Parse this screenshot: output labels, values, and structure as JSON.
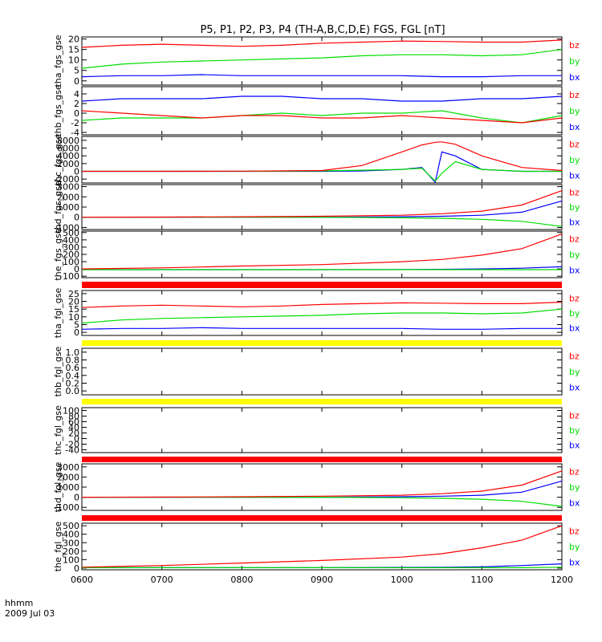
{
  "title": "P5, P1, P2, P3, P4 (TH-A,B,C,D,E) FGS, FGL [nT]",
  "footer": {
    "time_label": "hhmm",
    "date_label": "2009 Jul 03"
  },
  "colors": {
    "bx": "#0000ff",
    "by": "#00dd00",
    "bz": "#ff0000",
    "bar_red": "#ff0000",
    "bar_yellow": "#ffff00",
    "frame": "#000000"
  },
  "chart_data": [
    {
      "type": "line",
      "ylabel": "tha_fgs_gse",
      "ylim": [
        -2,
        21
      ],
      "yticks": [
        "0",
        "5",
        "10",
        "15",
        "20"
      ],
      "x": [
        "0600",
        "0630",
        "0700",
        "0730",
        "0800",
        "0830",
        "0900",
        "0930",
        "1000",
        "1030",
        "1100",
        "1130",
        "1200"
      ],
      "series": [
        {
          "name": "bz",
          "values": [
            16,
            17,
            17.5,
            17,
            16.5,
            17,
            18,
            18.5,
            19,
            18.8,
            18.5,
            18.5,
            19.5
          ]
        },
        {
          "name": "by",
          "values": [
            6,
            8,
            9,
            9.5,
            10,
            10.5,
            11,
            12,
            12.5,
            12.5,
            12,
            12.5,
            15
          ]
        },
        {
          "name": "bx",
          "values": [
            2,
            2.5,
            2.5,
            3,
            2.5,
            2.5,
            2.5,
            2.5,
            2.5,
            2,
            2,
            2.5,
            2.5
          ]
        }
      ]
    },
    {
      "type": "line",
      "ylabel": "thb_fgs_gse",
      "ylim": [
        -4.5,
        5.5
      ],
      "yticks": [
        "-4",
        "-2",
        "0",
        "2",
        "4"
      ],
      "x": [
        "0600",
        "0630",
        "0700",
        "0730",
        "0800",
        "0830",
        "0900",
        "0930",
        "1000",
        "1030",
        "1100",
        "1130",
        "1200"
      ],
      "series": [
        {
          "name": "bz",
          "values": [
            0.5,
            0,
            -0.5,
            -1,
            -0.5,
            -0.5,
            -1,
            -1,
            -0.5,
            -1,
            -1.5,
            -2,
            -1
          ]
        },
        {
          "name": "by",
          "values": [
            -1.5,
            -1,
            -1,
            -1,
            -0.5,
            0,
            -0.5,
            0,
            0,
            0.5,
            -1,
            -2,
            -0.5
          ]
        },
        {
          "name": "bx",
          "values": [
            2.5,
            3,
            3,
            3,
            3.5,
            3.5,
            3,
            3,
            2.5,
            2.5,
            3,
            3,
            3.5
          ]
        }
      ]
    },
    {
      "type": "line",
      "ylabel": "thc_fgs_gse",
      "ylim": [
        -3000,
        9000
      ],
      "yticks": [
        "-2000",
        "0",
        "2000",
        "4000",
        "6000",
        "8000"
      ],
      "x": [
        "0600",
        "0700",
        "0800",
        "0900",
        "0930",
        "1000",
        "1015",
        "1025",
        "1030",
        "1040",
        "1100",
        "1130",
        "1200"
      ],
      "series": [
        {
          "name": "bz",
          "values": [
            0,
            0,
            50,
            200,
            1500,
            5000,
            6800,
            7500,
            7600,
            7000,
            4000,
            1000,
            200
          ]
        },
        {
          "name": "by",
          "values": [
            0,
            0,
            0,
            100,
            300,
            500,
            800,
            -2500,
            -500,
            2500,
            500,
            0,
            0
          ]
        },
        {
          "name": "bx",
          "values": [
            0,
            0,
            0,
            0,
            100,
            500,
            1000,
            -2800,
            5000,
            4000,
            500,
            0,
            0
          ]
        }
      ]
    },
    {
      "type": "line",
      "ylabel": "thd_fgs_gse",
      "ylim": [
        -1200,
        3200
      ],
      "yticks": [
        "-1000",
        "0",
        "1000",
        "2000",
        "3000"
      ],
      "x": [
        "0600",
        "0700",
        "0800",
        "0900",
        "1000",
        "1030",
        "1100",
        "1130",
        "1200"
      ],
      "series": [
        {
          "name": "bz",
          "values": [
            0,
            20,
            50,
            100,
            200,
            350,
            600,
            1200,
            2600
          ]
        },
        {
          "name": "by",
          "values": [
            0,
            0,
            0,
            0,
            -50,
            -100,
            -200,
            -400,
            -900
          ]
        },
        {
          "name": "bx",
          "values": [
            0,
            0,
            0,
            0,
            50,
            100,
            200,
            500,
            1600
          ]
        }
      ]
    },
    {
      "type": "line",
      "ylabel": "the_fgs_gse",
      "ylim": [
        -120,
        520
      ],
      "yticks": [
        "-100",
        "0",
        "100",
        "200",
        "300",
        "400",
        "500"
      ],
      "x": [
        "0600",
        "0700",
        "0800",
        "0900",
        "1000",
        "1030",
        "1100",
        "1130",
        "1200"
      ],
      "series": [
        {
          "name": "bz",
          "values": [
            0,
            15,
            40,
            60,
            100,
            130,
            190,
            280,
            480
          ]
        },
        {
          "name": "by",
          "values": [
            -10,
            -10,
            -10,
            -10,
            -10,
            -10,
            -10,
            -10,
            -10
          ]
        },
        {
          "name": "bx",
          "values": [
            -10,
            -10,
            -10,
            -10,
            -8,
            -5,
            0,
            10,
            30
          ]
        }
      ]
    },
    {
      "type": "line",
      "ylabel": "tha_fgl_gse",
      "ylim": [
        -2,
        27
      ],
      "yticks": [
        "0",
        "5",
        "10",
        "15",
        "20",
        "25"
      ],
      "x": [
        "0600",
        "0630",
        "0700",
        "0730",
        "0800",
        "0830",
        "0900",
        "0930",
        "1000",
        "1030",
        "1100",
        "1130",
        "1200"
      ],
      "series": [
        {
          "name": "bz",
          "values": [
            16,
            17,
            17.5,
            17,
            16.5,
            17,
            18,
            18.5,
            19,
            18.8,
            18.5,
            18.5,
            19.5
          ]
        },
        {
          "name": "by",
          "values": [
            6,
            8,
            9,
            9.5,
            10,
            10.5,
            11,
            12,
            12.5,
            12.5,
            12,
            12.5,
            15
          ]
        },
        {
          "name": "bx",
          "values": [
            2,
            2.5,
            2.5,
            3,
            2.5,
            2.5,
            2.5,
            2.5,
            2.5,
            2,
            2,
            2.5,
            2.5
          ]
        }
      ]
    },
    {
      "type": "line",
      "ylabel": "thb_fgl_gse",
      "ylim": [
        -0.1,
        1.1
      ],
      "yticks": [
        "0.0",
        "0.2",
        "0.4",
        "0.6",
        "0.8",
        "1.0"
      ],
      "x": [],
      "series": []
    },
    {
      "type": "line",
      "ylabel": "thc_fgl_gse",
      "ylim": [
        -50,
        110
      ],
      "yticks": [
        "-40",
        "-20",
        "0",
        "20",
        "40",
        "60",
        "80",
        "100"
      ],
      "x": [],
      "series": []
    },
    {
      "type": "line",
      "ylabel": "thd_fgl_gse",
      "ylim": [
        -1300,
        3300
      ],
      "yticks": [
        "-1000",
        "0",
        "1000",
        "2000",
        "3000"
      ],
      "x": [
        "0600",
        "0700",
        "0800",
        "0900",
        "1000",
        "1030",
        "1100",
        "1130",
        "1200"
      ],
      "series": [
        {
          "name": "bz",
          "values": [
            0,
            20,
            50,
            100,
            200,
            350,
            600,
            1200,
            2600
          ]
        },
        {
          "name": "by",
          "values": [
            0,
            0,
            0,
            0,
            -50,
            -100,
            -200,
            -400,
            -900
          ]
        },
        {
          "name": "bx",
          "values": [
            0,
            0,
            0,
            0,
            50,
            100,
            200,
            500,
            1600
          ]
        }
      ]
    },
    {
      "type": "line",
      "ylabel": "the_fgl_gse",
      "ylim": [
        -20,
        530
      ],
      "yticks": [
        "0",
        "100",
        "200",
        "300",
        "400",
        "500"
      ],
      "x": [
        "0600",
        "0700",
        "0800",
        "0900",
        "1000",
        "1030",
        "1100",
        "1130",
        "1200"
      ],
      "series": [
        {
          "name": "bz",
          "values": [
            10,
            30,
            60,
            90,
            130,
            170,
            240,
            330,
            500
          ]
        },
        {
          "name": "by",
          "values": [
            5,
            5,
            5,
            5,
            5,
            5,
            5,
            5,
            10
          ]
        },
        {
          "name": "bx",
          "values": [
            5,
            5,
            5,
            5,
            8,
            10,
            15,
            30,
            50
          ]
        }
      ]
    }
  ],
  "xaxis": {
    "ticks": [
      "0600",
      "0700",
      "0800",
      "0900",
      "1000",
      "1100",
      "1200"
    ]
  },
  "legend": [
    "bz",
    "by",
    "bx"
  ]
}
